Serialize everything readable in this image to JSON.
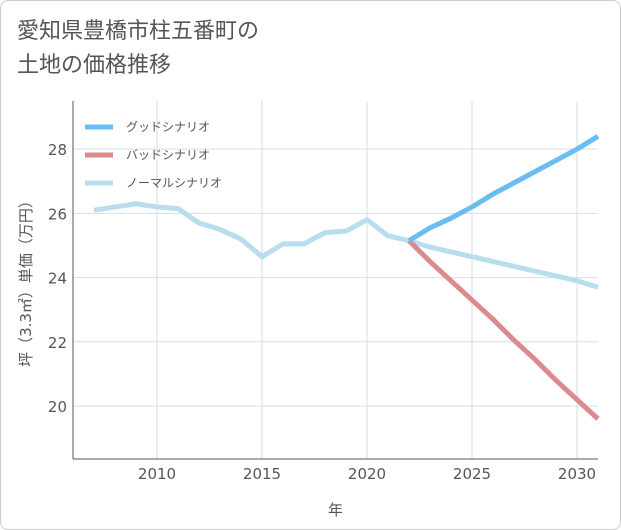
{
  "title_line1": "愛知県豊橋市柱五番町の",
  "title_line2": "土地の価格推移",
  "chart_data": {
    "type": "line",
    "xlabel": "年",
    "ylabel": "坪（3.3㎡）単価（万円）",
    "xlim": [
      2006,
      2031
    ],
    "ylim": [
      18.35,
      29.5
    ],
    "xticks": [
      2010,
      2015,
      2020,
      2025,
      2030
    ],
    "yticks": [
      20,
      22,
      24,
      26,
      28
    ],
    "grid": true,
    "legend_position": "top-left",
    "series": [
      {
        "name": "グッドシナリオ",
        "color": "#6bbcf3",
        "x": [
          2022,
          2023,
          2024,
          2025,
          2026,
          2027,
          2028,
          2029,
          2030,
          2031
        ],
        "y": [
          25.15,
          25.55,
          25.85,
          26.2,
          26.6,
          26.95,
          27.3,
          27.65,
          28.0,
          28.4
        ]
      },
      {
        "name": "バッドシナリオ",
        "color": "#dd8a8f",
        "x": [
          2022,
          2023,
          2024,
          2025,
          2026,
          2027,
          2028,
          2029,
          2030,
          2031
        ],
        "y": [
          25.15,
          24.5,
          23.9,
          23.3,
          22.7,
          22.05,
          21.45,
          20.8,
          20.2,
          19.6
        ]
      },
      {
        "name": "ノーマルシナリオ",
        "color": "#b8dded",
        "x": [
          2007,
          2008,
          2009,
          2010,
          2011,
          2012,
          2013,
          2014,
          2015,
          2016,
          2017,
          2018,
          2019,
          2020,
          2021,
          2022,
          2023,
          2024,
          2025,
          2026,
          2027,
          2028,
          2029,
          2030,
          2031
        ],
        "y": [
          26.1,
          26.2,
          26.3,
          26.2,
          26.15,
          25.7,
          25.5,
          25.2,
          24.65,
          25.05,
          25.05,
          25.4,
          25.45,
          25.8,
          25.3,
          25.15,
          24.95,
          24.8,
          24.65,
          24.5,
          24.35,
          24.2,
          24.05,
          23.9,
          23.7
        ]
      }
    ]
  }
}
